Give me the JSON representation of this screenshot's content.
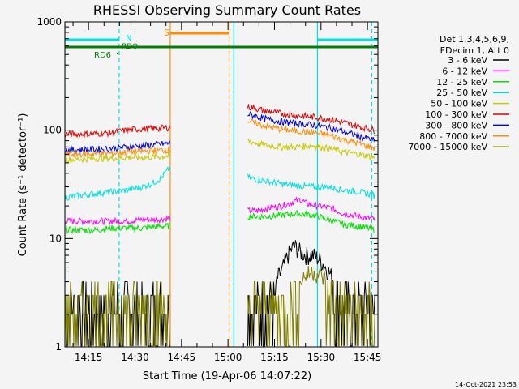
{
  "chart_data": {
    "type": "line",
    "title": "RHESSI Observing Summary Count Rates",
    "xlabel": "Start Time (19-Apr-06 14:07:22)",
    "ylabel": "Count Rate (s⁻¹ detector⁻¹)",
    "x_unit": "minutes after 14:07:22",
    "xlim": [
      0,
      101
    ],
    "ylim": [
      1,
      1000
    ],
    "y_scale": "log",
    "grid": false,
    "x_tick_labels": [
      "14:15",
      "14:30",
      "14:45",
      "15:00",
      "15:15",
      "15:30",
      "15:45"
    ],
    "y_tick_labels": [
      "1",
      "10",
      "100",
      "1000"
    ],
    "timestamp": "14-Oct-2021 23:53",
    "legend": {
      "placement": "right-outside",
      "header": [
        "Det 1,3,4,5,6,9,",
        "FDecim 1, Att 0"
      ],
      "entries": [
        {
          "label": "3 - 6 keV",
          "color": "#000000"
        },
        {
          "label": "6 - 12 keV",
          "color": "#ff00ff"
        },
        {
          "label": "12 - 25 keV",
          "color": "#00e000"
        },
        {
          "label": "25 - 50 keV",
          "color": "#00e0e0"
        },
        {
          "label": "50 - 100 keV",
          "color": "#c8c800"
        },
        {
          "label": "100 - 300 keV",
          "color": "#e00000"
        },
        {
          "label": "300 - 800 keV",
          "color": "#0000e0"
        },
        {
          "label": "800 - 7000 keV",
          "color": "#ff8c00"
        },
        {
          "label": "7000 - 15000 keV",
          "color": "#808000"
        }
      ]
    },
    "annotations": {
      "saa_label": "S",
      "night_label": "N",
      "rd6_label": "RD6",
      "rdo_label": "RDO"
    },
    "series": [
      {
        "name": "3 - 6 keV",
        "color": "#000000",
        "segments": [
          {
            "x": [
              0,
              5,
              10,
              15,
              20,
              25,
              30,
              34
            ],
            "y": [
              3,
              3,
              2.5,
              3,
              3,
              2.5,
              3,
              3
            ]
          },
          {
            "x": [
              59,
              62,
              65,
              68,
              70,
              72,
              74,
              76,
              78,
              80,
              82,
              84,
              86,
              88,
              90,
              92,
              94,
              96,
              98,
              100
            ],
            "y": [
              3,
              3,
              3.2,
              4,
              5,
              7,
              8.6,
              7.5,
              7,
              7,
              6.5,
              5.5,
              4.5,
              3.5,
              3,
              3,
              3,
              3,
              3,
              3
            ]
          }
        ]
      },
      {
        "name": "6 - 12 keV",
        "color": "#ff00ff",
        "segments": [
          {
            "x": [
              0,
              5,
              10,
              15,
              20,
              25,
              30,
              34
            ],
            "y": [
              14.5,
              14.5,
              14.5,
              14.5,
              14.5,
              15,
              15,
              15.5
            ]
          },
          {
            "x": [
              59,
              62,
              65,
              70,
              74,
              76,
              78,
              82,
              86,
              90,
              95,
              100
            ],
            "y": [
              18,
              18,
              19,
              20,
              22,
              23,
              21,
              20,
              19,
              17,
              16,
              15
            ]
          }
        ]
      },
      {
        "name": "12 - 25 keV",
        "color": "#00e000",
        "segments": [
          {
            "x": [
              0,
              5,
              10,
              15,
              20,
              25,
              30,
              34
            ],
            "y": [
              12,
              12,
              12,
              12.5,
              12.5,
              12.5,
              13,
              13
            ]
          },
          {
            "x": [
              59,
              62,
              65,
              70,
              75,
              80,
              85,
              90,
              95,
              100
            ],
            "y": [
              16,
              16,
              16,
              16.5,
              17,
              16.5,
              15,
              13.5,
              13,
              12
            ]
          }
        ]
      },
      {
        "name": "25 - 50 keV",
        "color": "#00e0e0",
        "segments": [
          {
            "x": [
              0,
              5,
              10,
              15,
              20,
              25,
              28,
              31,
              34
            ],
            "y": [
              24,
              25,
              26,
              27,
              28,
              30,
              32,
              36,
              45
            ]
          },
          {
            "x": [
              59,
              62,
              65,
              70,
              75,
              80,
              85,
              90,
              95,
              100
            ],
            "y": [
              37,
              35,
              34,
              32,
              31,
              30,
              30,
              28,
              27,
              25
            ]
          }
        ]
      },
      {
        "name": "50 - 100 keV",
        "color": "#c8c800",
        "segments": [
          {
            "x": [
              0,
              5,
              10,
              15,
              20,
              25,
              30,
              34
            ],
            "y": [
              54,
              54,
              55,
              55,
              56,
              56,
              57,
              58
            ]
          },
          {
            "x": [
              59,
              62,
              65,
              70,
              75,
              80,
              85,
              90,
              95,
              100
            ],
            "y": [
              80,
              76,
              72,
              70,
              70,
              72,
              68,
              63,
              60,
              56
            ]
          }
        ]
      },
      {
        "name": "100 - 300 keV",
        "color": "#e00000",
        "segments": [
          {
            "x": [
              0,
              5,
              10,
              15,
              20,
              25,
              30,
              34
            ],
            "y": [
              92,
              92,
              93,
              95,
              100,
              103,
              104,
              106
            ]
          },
          {
            "x": [
              59,
              62,
              65,
              70,
              75,
              80,
              85,
              90,
              95,
              100
            ],
            "y": [
              165,
              158,
              150,
              143,
              137,
              133,
              127,
              118,
              108,
              100
            ]
          }
        ]
      },
      {
        "name": "300 - 800 keV",
        "color": "#0000e0",
        "segments": [
          {
            "x": [
              0,
              5,
              10,
              15,
              20,
              25,
              30,
              34
            ],
            "y": [
              66,
              66,
              67,
              68,
              70,
              72,
              74,
              76
            ]
          },
          {
            "x": [
              59,
              62,
              65,
              70,
              75,
              80,
              85,
              90,
              95,
              100
            ],
            "y": [
              140,
              134,
              127,
              120,
              115,
              112,
              106,
              97,
              88,
              80
            ]
          }
        ]
      },
      {
        "name": "800 - 7000 keV",
        "color": "#ff8c00",
        "segments": [
          {
            "x": [
              0,
              5,
              10,
              15,
              20,
              25,
              30,
              34
            ],
            "y": [
              60,
              60,
              61,
              61,
              63,
              64,
              65,
              66
            ]
          },
          {
            "x": [
              59,
              62,
              65,
              70,
              75,
              80,
              85,
              90,
              95,
              100
            ],
            "y": [
              122,
              115,
              108,
              102,
              98,
              95,
              90,
              82,
              75,
              68
            ]
          }
        ]
      },
      {
        "name": "7000 - 15000 keV",
        "color": "#808000",
        "segments": [
          {
            "x": [
              0,
              5,
              10,
              15,
              20,
              25,
              30,
              34
            ],
            "y": [
              2.5,
              2.5,
              3,
              3,
              2.5,
              3,
              3,
              2.5
            ]
          },
          {
            "x": [
              59,
              62,
              65,
              70,
              75,
              80,
              85,
              90,
              95,
              100
            ],
            "y": [
              2.5,
              3,
              3,
              3,
              4,
              5,
              4,
              3,
              2.5,
              2.5
            ]
          }
        ]
      }
    ],
    "flag_bars": [
      {
        "label": "S",
        "color": "#ff8c00",
        "x": [
          34,
          53
        ]
      },
      {
        "label": "N",
        "color": "#00e0e0",
        "x": [
          0,
          17.5
        ]
      },
      {
        "label": "N",
        "color": "#00e0e0",
        "x": [
          81.5,
          101
        ]
      },
      {
        "label": "RD6",
        "color": "#008000",
        "x": [
          0,
          101
        ]
      }
    ],
    "vertical_lines": [
      {
        "color": "#00e0e0",
        "style": "solid",
        "x": 0
      },
      {
        "color": "#00e0e0",
        "style": "dashed",
        "x": 17.5
      },
      {
        "color": "#ff8c00",
        "style": "solid",
        "x": 34
      },
      {
        "color": "#ff8c00",
        "style": "dashed",
        "x": 53
      },
      {
        "color": "#00e0e0",
        "style": "solid",
        "x": 54.5
      },
      {
        "color": "#00e0e0",
        "style": "solid",
        "x": 81.5
      },
      {
        "color": "#00e0e0",
        "style": "dashed",
        "x": 99
      }
    ]
  }
}
